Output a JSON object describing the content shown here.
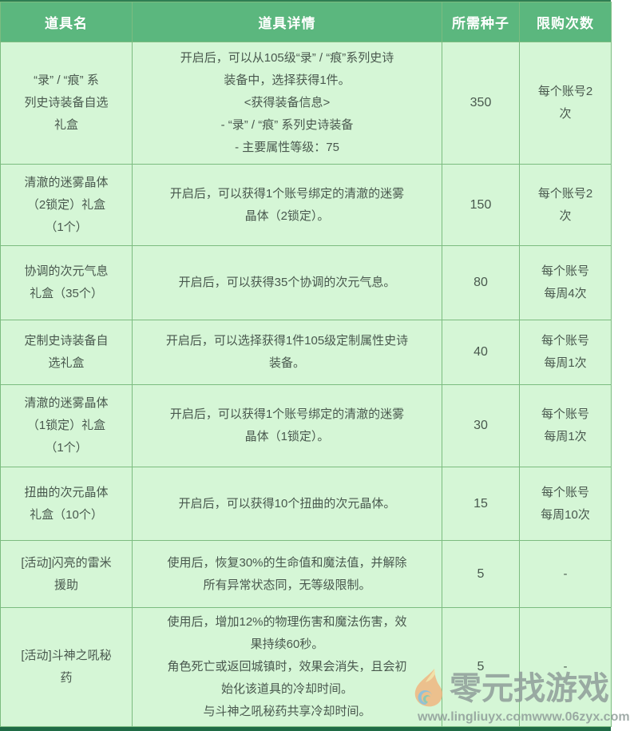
{
  "accent_colors": {
    "header_bg": "#5bb77e",
    "body_bg": "#d5f6d6",
    "grid_border": "#7cbc80",
    "top_edge": "#2e7d52",
    "bottom_bar": "#1f6b45",
    "body_text": "#49584e",
    "watermark_gray": "#8d9a97"
  },
  "table": {
    "headers": [
      "道具名",
      "道具详情",
      "所需种子",
      "限购次数"
    ],
    "rows": [
      {
        "name": "“录” / “痕” 系\n列史诗装备自选\n礼盒",
        "details": "开启后，可以从105级“录” / “痕”系列史诗\n装备中，选择获得1件。\n<获得装备信息>\n- “录” / “痕” 系列史诗装备\n- 主要属性等级：75",
        "seeds": "350",
        "limit": "每个账号2\n次"
      },
      {
        "name": "清澈的迷雾晶体\n（2锁定）礼盒\n（1个）",
        "details": "开启后，可以获得1个账号绑定的清澈的迷雾\n晶体（2锁定）。",
        "seeds": "150",
        "limit": "每个账号2\n次"
      },
      {
        "name": "协调的次元气息\n礼盒（35个）",
        "details": "开启后，可以获得35个协调的次元气息。",
        "seeds": "80",
        "limit": "每个账号\n每周4次"
      },
      {
        "name": "定制史诗装备自\n选礼盒",
        "details": "开启后，可以选择获得1件105级定制属性史诗\n装备。",
        "seeds": "40",
        "limit": "每个账号\n每周1次"
      },
      {
        "name": "清澈的迷雾晶体\n（1锁定）礼盒\n（1个）",
        "details": "开启后，可以获得1个账号绑定的清澈的迷雾\n晶体（1锁定）。",
        "seeds": "30",
        "limit": "每个账号\n每周1次"
      },
      {
        "name": "扭曲的次元晶体\n礼盒（10个）",
        "details": "开启后，可以获得10个扭曲的次元晶体。",
        "seeds": "15",
        "limit": "每个账号\n每周10次"
      },
      {
        "name": "[活动]闪亮的雷米\n援助",
        "details": "使用后，恢复30%的生命值和魔法值，并解除\n所有异常状态同，无等级限制。",
        "seeds": "5",
        "limit": "-"
      },
      {
        "name": "[活动]斗神之吼秘\n药",
        "details": "使用后，增加12%的物理伤害和魔法伤害，效\n果持续60秒。\n角色死亡或返回城镇时，效果会消失，且会初\n始化该道具的冷却时间。\n与斗神之吼秘药共享冷却时间。",
        "seeds": "5",
        "limit": "-"
      }
    ]
  },
  "watermark": {
    "site_name": "零元找游戏",
    "url_left": "www.lingliuyx.com",
    "url_right": "www.06zyx.com"
  }
}
